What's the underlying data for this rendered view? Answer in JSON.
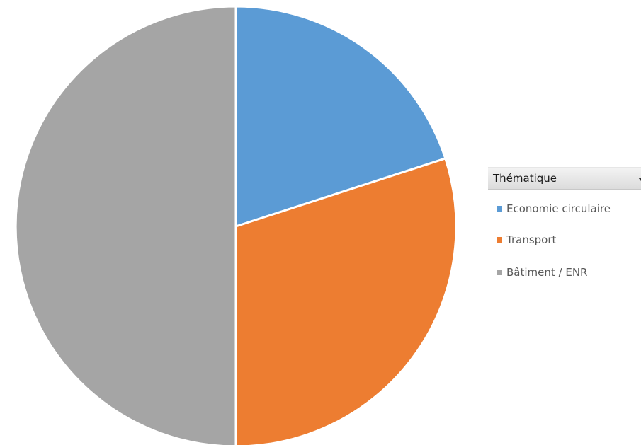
{
  "legend": {
    "header_label": "Thématique",
    "items": [
      {
        "label": "Economie circulaire",
        "color": "#5b9bd5"
      },
      {
        "label": "Transport",
        "color": "#ed7d31"
      },
      {
        "label": "Bâtiment / ENR",
        "color": "#a5a5a5"
      }
    ]
  },
  "chart_data": {
    "type": "pie",
    "title": "",
    "categories": [
      "Economie circulaire",
      "Transport",
      "Bâtiment / ENR"
    ],
    "values": [
      20,
      30,
      50
    ],
    "colors": [
      "#5b9bd5",
      "#ed7d31",
      "#a5a5a5"
    ],
    "start_angle_deg": 0,
    "direction": "clockwise",
    "legend_position": "right",
    "legend_title": "Thématique"
  }
}
